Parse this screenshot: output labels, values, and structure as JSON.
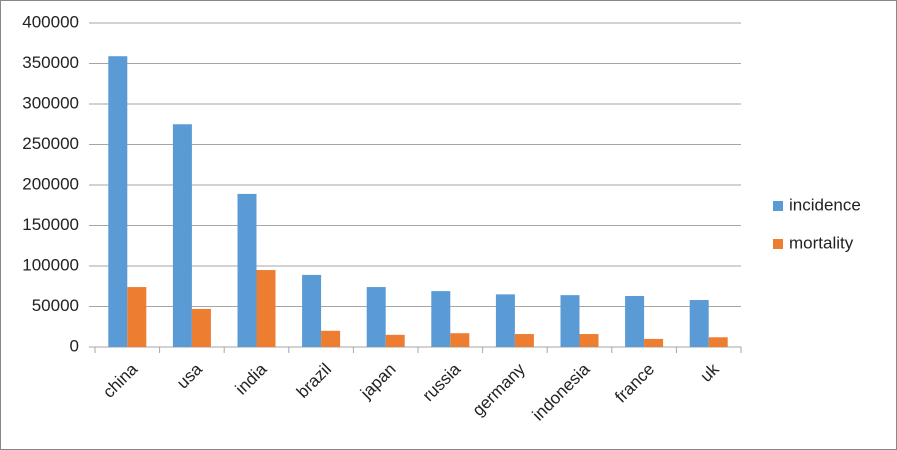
{
  "chart_data": {
    "type": "bar",
    "categories": [
      "china",
      "usa",
      "india",
      "brazil",
      "japan",
      "russia",
      "germany",
      "indonesia",
      "france",
      "uk"
    ],
    "series": [
      {
        "name": "incidence",
        "color": "#5b9bd5",
        "values": [
          359000,
          275000,
          189000,
          89000,
          74000,
          69000,
          65000,
          64000,
          63000,
          58000
        ]
      },
      {
        "name": "mortality",
        "color": "#ed7d31",
        "values": [
          74000,
          47000,
          95000,
          20000,
          15000,
          17000,
          16000,
          16000,
          10000,
          12000
        ]
      }
    ],
    "ylim": [
      0,
      400000
    ],
    "yticks": [
      0,
      50000,
      100000,
      150000,
      200000,
      250000,
      300000,
      350000,
      400000
    ],
    "grid": true,
    "legend": "right"
  }
}
